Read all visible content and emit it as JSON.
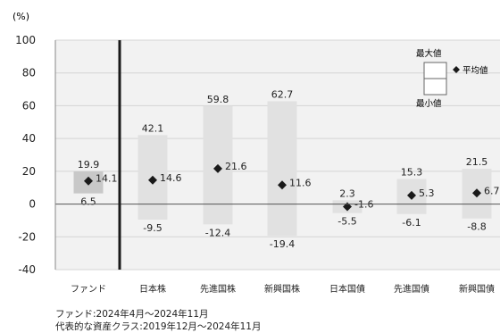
{
  "chart_data": {
    "type": "range-bar",
    "unit_label": "(%)",
    "ylim": [
      -40,
      100
    ],
    "yticks": [
      100,
      80,
      60,
      40,
      20,
      0,
      -20,
      -40
    ],
    "grid": true,
    "legend": {
      "max_label": "最大値",
      "min_label": "最小値",
      "avg_label": "平均値",
      "position": "top-right"
    },
    "categories": [
      "ファンド",
      "日本株",
      "先進国株",
      "新興国株",
      "日本国債",
      "先進国債",
      "新興国債"
    ],
    "series": [
      {
        "name": "最大値",
        "values": [
          19.9,
          42.1,
          59.8,
          62.7,
          2.3,
          15.3,
          21.5
        ]
      },
      {
        "name": "平均値",
        "values": [
          14.1,
          14.6,
          21.6,
          11.6,
          -1.6,
          5.3,
          6.7
        ]
      },
      {
        "name": "最小値",
        "values": [
          6.5,
          -9.5,
          -12.4,
          -19.4,
          -5.5,
          -6.1,
          -8.8
        ]
      }
    ],
    "colors": {
      "fund_bar": "#c8c8c8",
      "asset_bar": "#e1e1e1",
      "marker": "#1a1a1a",
      "plot_bg": "#f2f2f2",
      "divider": "#1a1a1a"
    }
  },
  "notes": [
    "ファンド:2024年4月～2024年11月",
    "代表的な資産クラス:2019年12月～2024年11月"
  ]
}
